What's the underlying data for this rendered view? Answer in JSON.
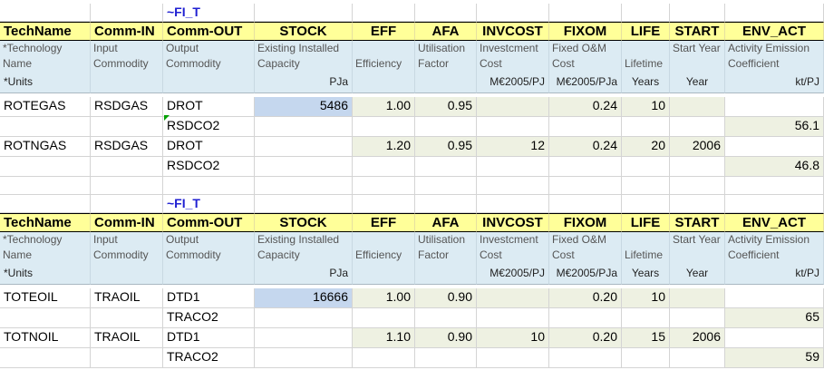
{
  "tag": "~FI_T",
  "headers": [
    "TechName",
    "Comm-IN",
    "Comm-OUT",
    "STOCK",
    "EFF",
    "AFA",
    "INVCOST",
    "FIXOM",
    "LIFE",
    "START",
    "ENV_ACT"
  ],
  "descriptions": [
    "*Technology Name",
    "Input Commodity",
    "Output Commodity",
    "Existing Installed Capacity",
    "Efficiency",
    "Utilisation Factor",
    "Investcment Cost",
    "Fixed O&M Cost",
    "Lifetime",
    "Start Year",
    "Activity Emission Coefficient"
  ],
  "units": [
    "*Units",
    "",
    "",
    "PJa",
    "",
    "",
    "M€2005/PJ",
    "M€2005/PJa",
    "Years",
    "Year",
    "kt/PJ"
  ],
  "block1_rows": [
    [
      "ROTEGAS",
      "RSDGAS",
      "DROT",
      "5486",
      "1.00",
      "0.95",
      "",
      "0.24",
      "10",
      "",
      ""
    ],
    [
      "",
      "",
      "RSDCO2",
      "",
      "",
      "",
      "",
      "",
      "",
      "",
      "56.1"
    ],
    [
      "ROTNGAS",
      "RSDGAS",
      "DROT",
      "",
      "1.20",
      "0.95",
      "12",
      "0.24",
      "20",
      "2006",
      ""
    ],
    [
      "",
      "",
      "RSDCO2",
      "",
      "",
      "",
      "",
      "",
      "",
      "",
      "46.8"
    ]
  ],
  "block2_rows": [
    [
      "TOTEOIL",
      "TRAOIL",
      "DTD1",
      "16666",
      "1.00",
      "0.90",
      "",
      "0.20",
      "10",
      "",
      ""
    ],
    [
      "",
      "",
      "TRACO2",
      "",
      "",
      "",
      "",
      "",
      "",
      "",
      "65"
    ],
    [
      "TOTNOIL",
      "TRAOIL",
      "DTD1",
      "",
      "1.10",
      "0.90",
      "10",
      "0.20",
      "15",
      "2006",
      ""
    ],
    [
      "",
      "",
      "TRACO2",
      "",
      "",
      "",
      "",
      "",
      "",
      "",
      "59"
    ]
  ]
}
